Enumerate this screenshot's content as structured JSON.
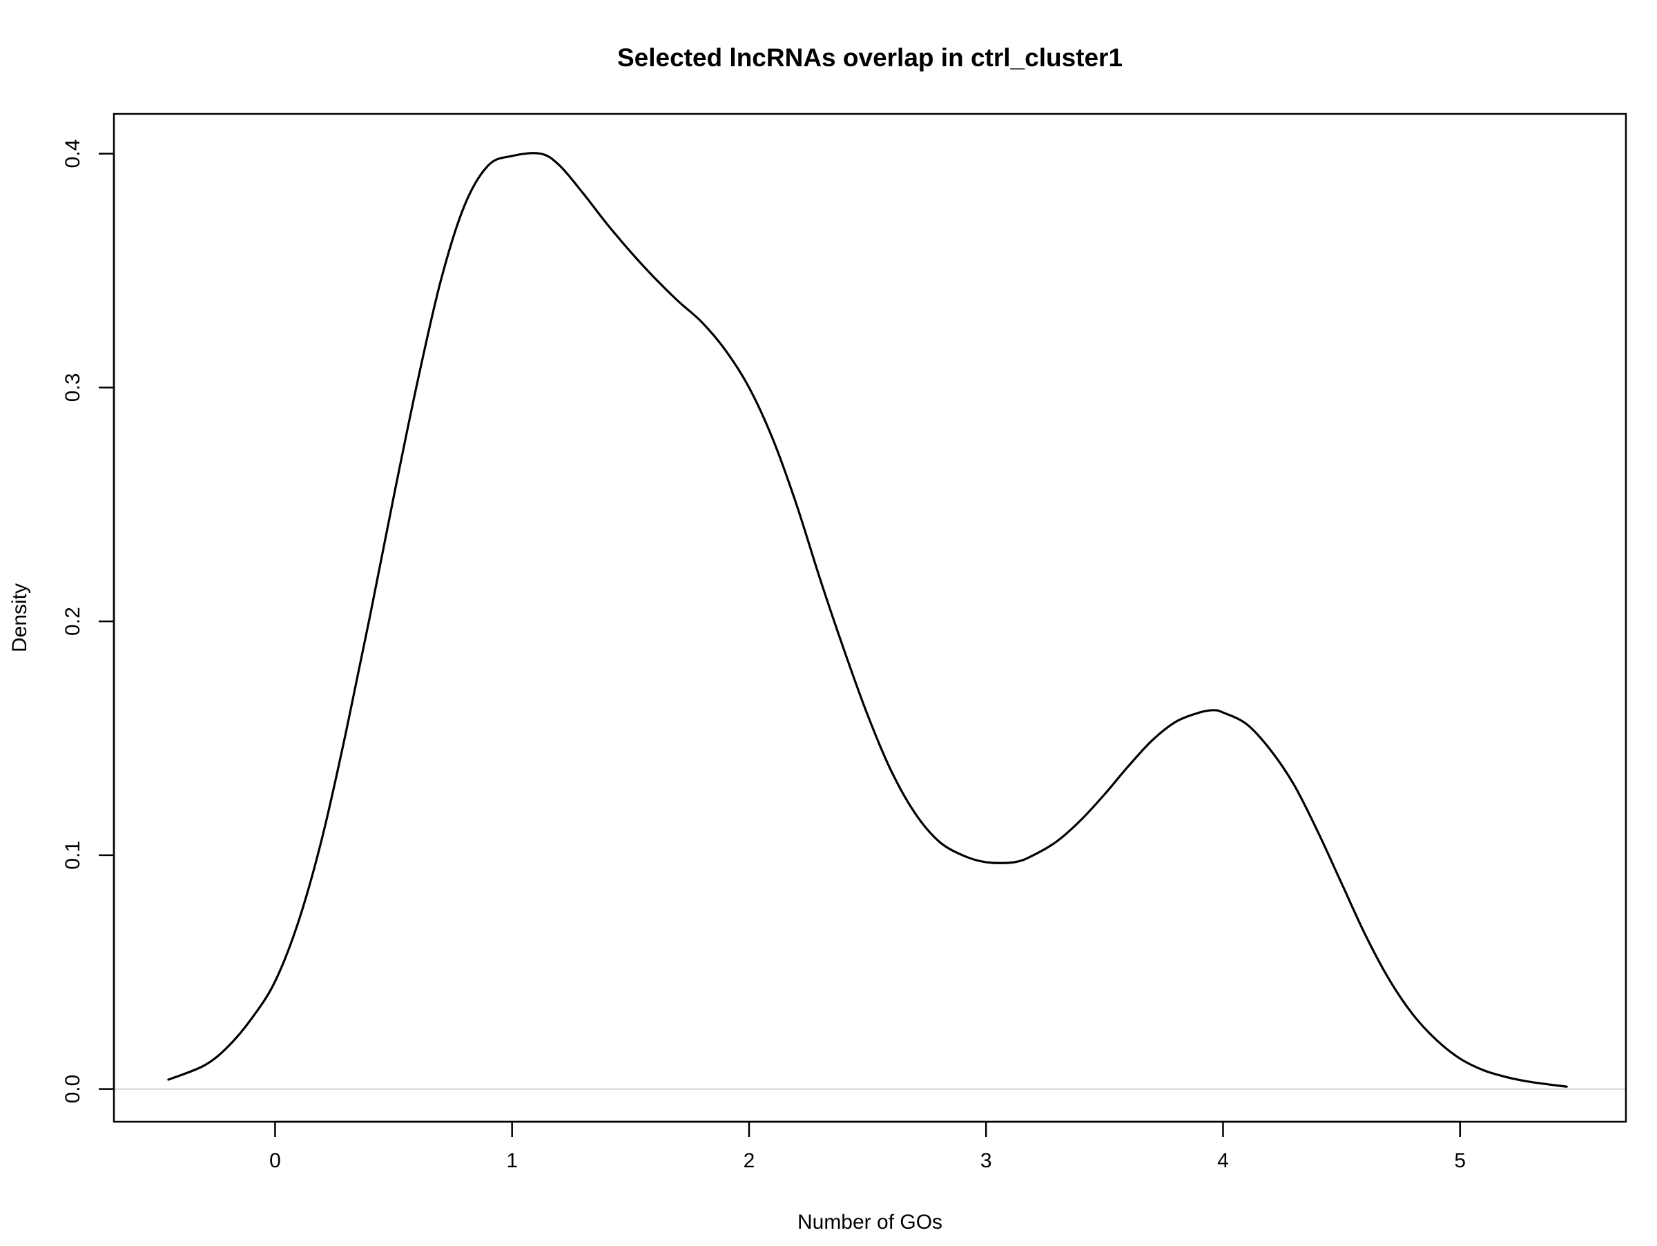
{
  "chart_data": {
    "type": "line",
    "title": "Selected lncRNAs overlap in ctrl_cluster1",
    "xlabel": "Number of GOs",
    "ylabel": "Density",
    "xlim": [
      -0.68,
      5.7
    ],
    "ylim": [
      -0.014,
      0.417
    ],
    "x_ticks": [
      0,
      1,
      2,
      3,
      4,
      5
    ],
    "x_tick_labels": [
      "0",
      "1",
      "2",
      "3",
      "4",
      "5"
    ],
    "y_ticks": [
      0.0,
      0.1,
      0.2,
      0.3,
      0.4
    ],
    "y_tick_labels": [
      "0.0",
      "0.1",
      "0.2",
      "0.3",
      "0.4"
    ],
    "baseline": 0,
    "grid": false,
    "legend": "none",
    "colors": {
      "line": "#000000",
      "baseline": "#d3d3d3",
      "frame": "#000000",
      "background": "#ffffff"
    },
    "series": [
      {
        "x": [
          -0.45,
          -0.3,
          -0.2,
          -0.1,
          0.0,
          0.1,
          0.2,
          0.3,
          0.4,
          0.5,
          0.6,
          0.7,
          0.8,
          0.9,
          1.0,
          1.12,
          1.2,
          1.3,
          1.4,
          1.5,
          1.6,
          1.7,
          1.8,
          1.9,
          2.0,
          2.1,
          2.2,
          2.3,
          2.4,
          2.5,
          2.6,
          2.7,
          2.8,
          2.9,
          3.0,
          3.12,
          3.2,
          3.3,
          3.4,
          3.5,
          3.6,
          3.7,
          3.8,
          3.9,
          3.96,
          4.0,
          4.1,
          4.2,
          4.3,
          4.4,
          4.5,
          4.6,
          4.7,
          4.8,
          4.9,
          5.0,
          5.1,
          5.2,
          5.3,
          5.45
        ],
        "y": [
          0.004,
          0.01,
          0.018,
          0.03,
          0.046,
          0.072,
          0.108,
          0.153,
          0.202,
          0.253,
          0.302,
          0.346,
          0.378,
          0.395,
          0.399,
          0.4,
          0.395,
          0.383,
          0.37,
          0.358,
          0.347,
          0.337,
          0.328,
          0.316,
          0.3,
          0.278,
          0.25,
          0.218,
          0.188,
          0.16,
          0.136,
          0.118,
          0.106,
          0.1,
          0.097,
          0.097,
          0.1,
          0.106,
          0.115,
          0.126,
          0.138,
          0.149,
          0.157,
          0.161,
          0.162,
          0.161,
          0.156,
          0.145,
          0.13,
          0.11,
          0.088,
          0.066,
          0.047,
          0.032,
          0.021,
          0.013,
          0.008,
          0.005,
          0.003,
          0.001
        ]
      }
    ]
  }
}
